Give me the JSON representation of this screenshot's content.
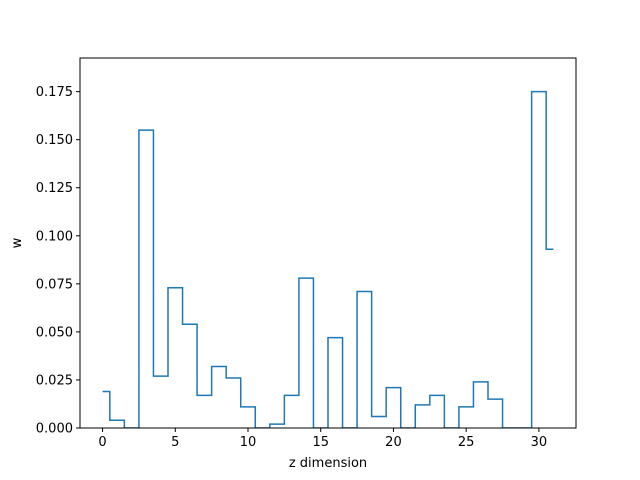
{
  "chart_data": {
    "type": "line",
    "drawstyle": "steps-mid",
    "title": "",
    "xlabel": "z dimension",
    "ylabel": "w",
    "xlim": [
      -1.55,
      32.55
    ],
    "ylim": [
      0,
      0.1925
    ],
    "xticks": [
      0,
      5,
      10,
      15,
      20,
      25,
      30
    ],
    "xtick_labels": [
      "0",
      "5",
      "10",
      "15",
      "20",
      "25",
      "30"
    ],
    "yticks": [
      0,
      0.025,
      0.05,
      0.075,
      0.1,
      0.125,
      0.15,
      0.175
    ],
    "ytick_labels": [
      "0.000",
      "0.025",
      "0.050",
      "0.075",
      "0.100",
      "0.125",
      "0.150",
      "0.175"
    ],
    "grid": false,
    "legend": "none",
    "series": [
      {
        "color": "#1f77b4",
        "x": [
          0,
          1,
          2,
          3,
          4,
          5,
          6,
          7,
          8,
          9,
          10,
          11,
          12,
          13,
          14,
          15,
          16,
          17,
          18,
          19,
          20,
          21,
          22,
          23,
          24,
          25,
          26,
          27,
          28,
          29,
          30,
          31
        ],
        "y": [
          0.019,
          0.004,
          0.0,
          0.155,
          0.027,
          0.073,
          0.054,
          0.017,
          0.032,
          0.026,
          0.011,
          0.0,
          0.002,
          0.017,
          0.078,
          0.0,
          0.047,
          0.0,
          0.071,
          0.006,
          0.021,
          0.0,
          0.012,
          0.017,
          0.0,
          0.011,
          0.024,
          0.015,
          0.0,
          0.0,
          0.175,
          0.093
        ]
      }
    ]
  }
}
